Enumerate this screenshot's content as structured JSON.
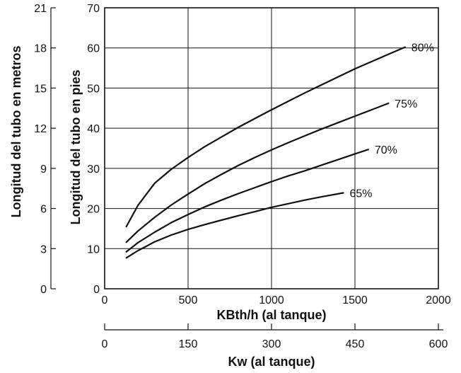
{
  "chart_data": {
    "type": "line",
    "grid": true,
    "xaxis_primary": {
      "label": "KBth/h (al tanque)",
      "range": [
        0,
        2000
      ],
      "ticks": [
        "0",
        "500",
        "1000",
        "1500",
        "2000"
      ]
    },
    "xaxis_secondary": {
      "label": "Kw (al tanque)",
      "range": [
        0,
        600
      ],
      "ticks": [
        "0",
        "150",
        "300",
        "450",
        "600"
      ]
    },
    "yaxis_primary": {
      "label": "Longitud del tubo en pies",
      "range": [
        0,
        70
      ],
      "ticks": [
        "0",
        "10",
        "20",
        "30",
        "40",
        "50",
        "60",
        "70"
      ]
    },
    "yaxis_secondary": {
      "label": "Longitud del tubo en metros",
      "range": [
        0,
        21
      ],
      "ticks": [
        "0",
        "3",
        "6",
        "9",
        "12",
        "15",
        "18",
        "21"
      ]
    },
    "series": [
      {
        "name": "80%",
        "x": [
          130,
          200,
          300,
          400,
          500,
          600,
          700,
          800,
          900,
          1000,
          1100,
          1200,
          1300,
          1400,
          1500,
          1600,
          1700,
          1800
        ],
        "y": [
          15.5,
          20.8,
          26.3,
          29.8,
          32.7,
          35.4,
          37.8,
          40.2,
          42.4,
          44.6,
          46.7,
          48.8,
          50.8,
          52.8,
          54.8,
          56.6,
          58.4,
          60.2
        ]
      },
      {
        "name": "75%",
        "x": [
          130,
          200,
          300,
          400,
          500,
          600,
          700,
          800,
          900,
          1000,
          1100,
          1200,
          1300,
          1400,
          1500,
          1600,
          1700
        ],
        "y": [
          11.6,
          14.4,
          17.8,
          20.9,
          23.6,
          26.2,
          28.5,
          30.7,
          32.7,
          34.6,
          36.4,
          38.1,
          39.8,
          41.4,
          43.0,
          44.6,
          46.2
        ]
      },
      {
        "name": "70%",
        "x": [
          130,
          200,
          300,
          400,
          500,
          600,
          700,
          800,
          900,
          1000,
          1100,
          1200,
          1300,
          1400,
          1500,
          1580
        ],
        "y": [
          9.2,
          11.5,
          14.1,
          16.5,
          18.5,
          20.4,
          22.1,
          23.7,
          25.2,
          26.7,
          28.1,
          29.4,
          30.8,
          32.2,
          33.6,
          34.7
        ]
      },
      {
        "name": "65%",
        "x": [
          130,
          200,
          300,
          400,
          500,
          600,
          700,
          800,
          900,
          1000,
          1100,
          1200,
          1300,
          1430
        ],
        "y": [
          7.7,
          9.5,
          11.7,
          13.4,
          14.8,
          16.0,
          17.1,
          18.2,
          19.2,
          20.3,
          21.2,
          22.1,
          22.9,
          23.9
        ]
      }
    ]
  }
}
